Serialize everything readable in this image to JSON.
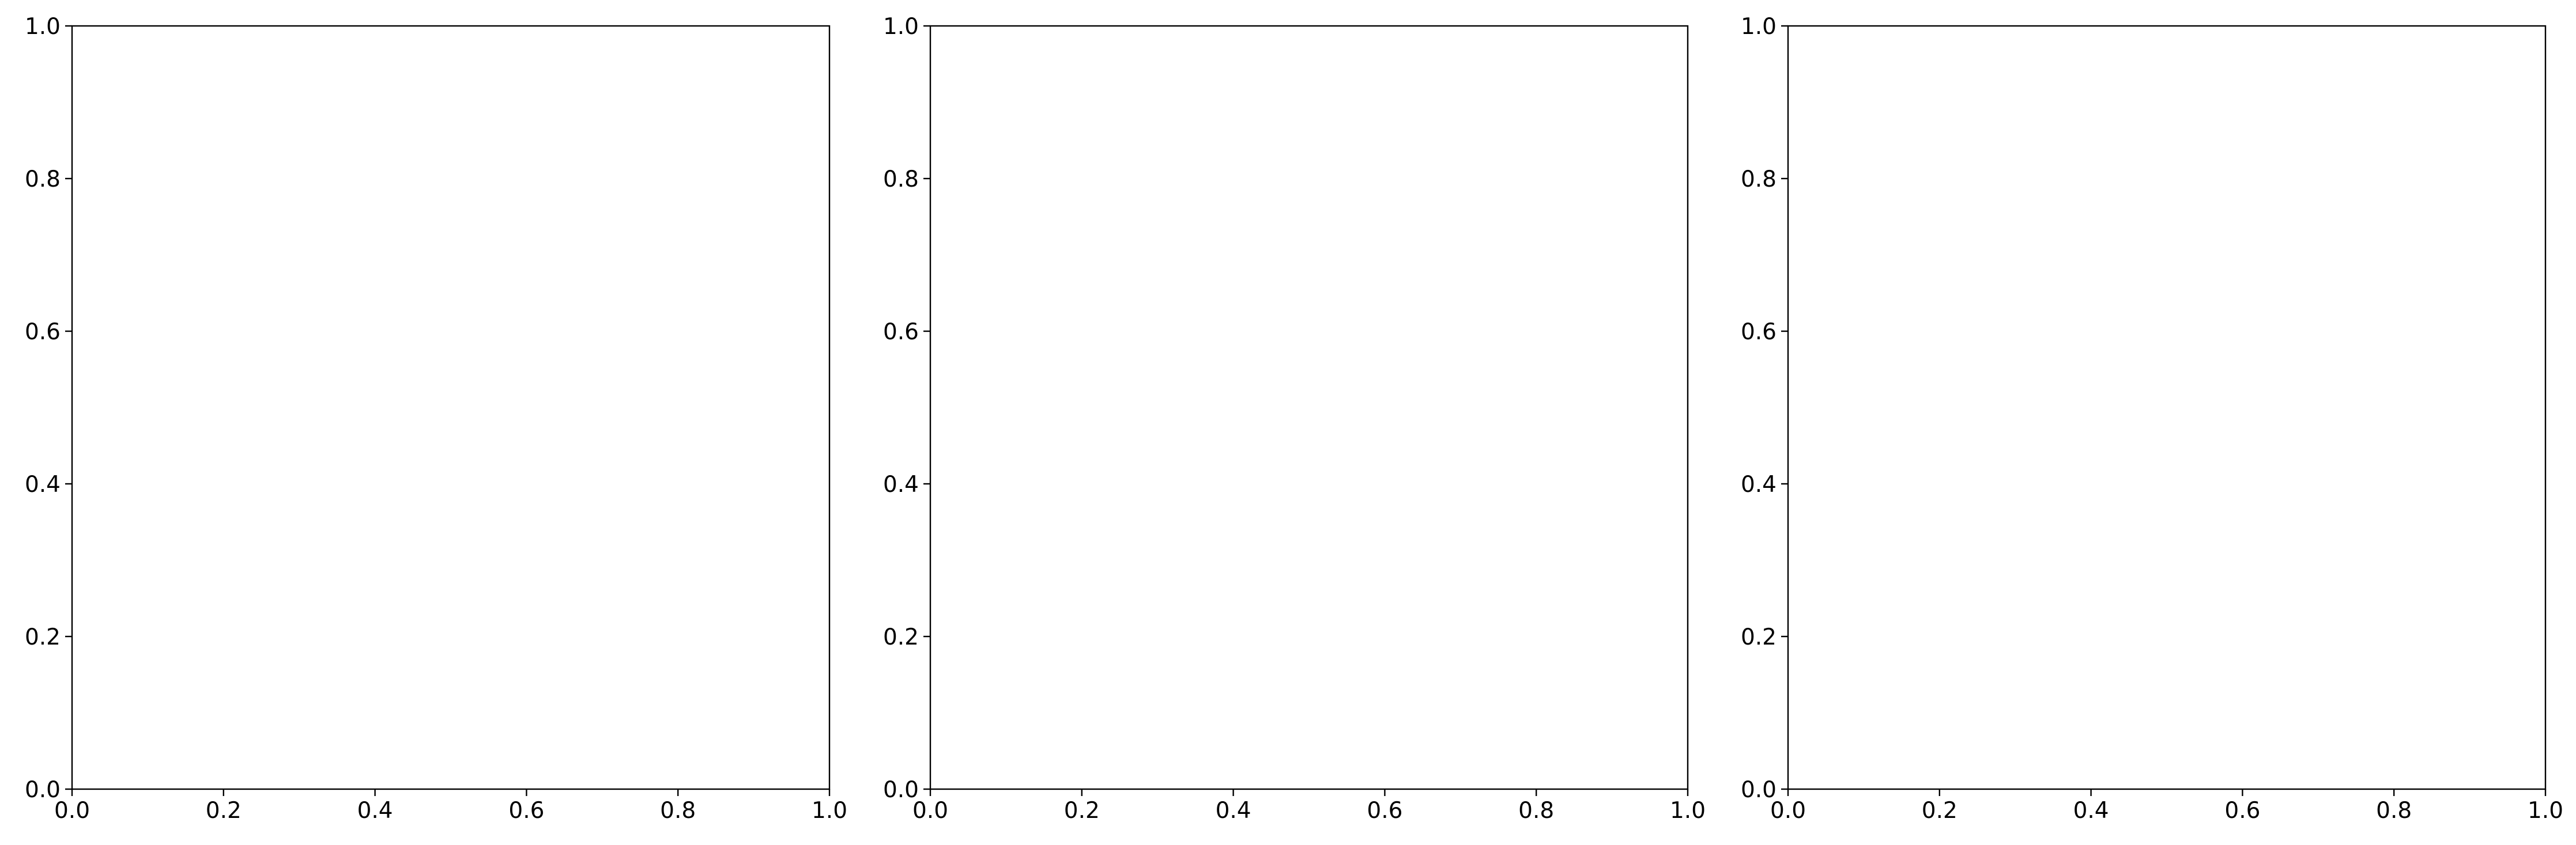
{
  "chart_data": [
    {
      "type": "scatter",
      "title": "",
      "xlabel": "",
      "ylabel": "",
      "xlim": [
        0,
        1
      ],
      "ylim": [
        0,
        1
      ],
      "xticks": [
        "0.0",
        "0.2",
        "0.4",
        "0.6",
        "0.8",
        "1.0"
      ],
      "yticks": [
        "0.0",
        "0.2",
        "0.4",
        "0.6",
        "0.8",
        "1.0"
      ],
      "series": [],
      "grid": false
    },
    {
      "type": "scatter",
      "title": "",
      "xlabel": "",
      "ylabel": "",
      "xlim": [
        0,
        1
      ],
      "ylim": [
        0,
        1
      ],
      "xticks": [
        "0.0",
        "0.2",
        "0.4",
        "0.6",
        "0.8",
        "1.0"
      ],
      "yticks": [
        "0.0",
        "0.2",
        "0.4",
        "0.6",
        "0.8",
        "1.0"
      ],
      "series": [],
      "grid": false
    },
    {
      "type": "scatter",
      "title": "",
      "xlabel": "",
      "ylabel": "",
      "xlim": [
        0,
        1
      ],
      "ylim": [
        0,
        1
      ],
      "xticks": [
        "0.0",
        "0.2",
        "0.4",
        "0.6",
        "0.8",
        "1.0"
      ],
      "yticks": [
        "0.0",
        "0.2",
        "0.4",
        "0.6",
        "0.8",
        "1.0"
      ],
      "series": [],
      "grid": false
    }
  ]
}
